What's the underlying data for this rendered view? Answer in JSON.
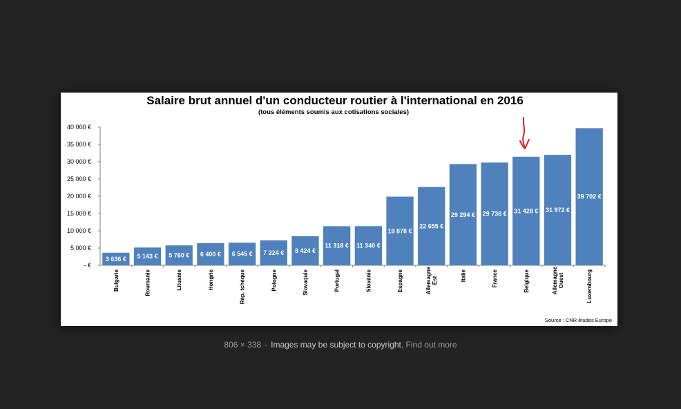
{
  "caption": {
    "dimensions": "806 × 338",
    "separator": "-",
    "copyright": "Images may be subject to copyright.",
    "learn_more": "Find out more"
  },
  "chart_data": {
    "type": "bar",
    "title": "Salaire brut annuel d'un conducteur routier à l'international en 2016",
    "subtitle": "(tous éléments soumis aux cotisations sociales)",
    "categories": [
      [
        "Bulgarie"
      ],
      [
        "Roumanie"
      ],
      [
        "Lituanie"
      ],
      [
        "Hongrie"
      ],
      [
        "Rép. tchèque"
      ],
      [
        "Pologne"
      ],
      [
        "Slovaquie"
      ],
      [
        "Portugal"
      ],
      [
        "Slovénie"
      ],
      [
        "Espagne"
      ],
      [
        "Allemagne",
        "Est"
      ],
      [
        "Italie"
      ],
      [
        "France"
      ],
      [
        "Belgique"
      ],
      [
        "Allemagne",
        "Ouest"
      ],
      [
        "Luxembourg"
      ]
    ],
    "values": [
      3636,
      5143,
      5760,
      6400,
      6545,
      7224,
      8424,
      11318,
      11340,
      19878,
      22655,
      29294,
      29736,
      31428,
      31972,
      39702
    ],
    "data_labels": [
      "3 636 €",
      "5 143 €",
      "5 760 €",
      "6 400 €",
      "6 545 €",
      "7 224 €",
      "8 424 €",
      "11 318 €",
      "11 340 €",
      "19 878 €",
      "22 655 €",
      "29 294 €",
      "29 736 €",
      "31 428 €",
      "31 972 €",
      "39 702 €"
    ],
    "ylim": [
      0,
      40000
    ],
    "yticks": [
      {
        "value": 40000,
        "label": "40 000 €"
      },
      {
        "value": 35000,
        "label": "35 000 €"
      },
      {
        "value": 30000,
        "label": "30 000 €"
      },
      {
        "value": 25000,
        "label": "25 000 €"
      },
      {
        "value": 20000,
        "label": "20 000 €"
      },
      {
        "value": 15000,
        "label": "15 000 €"
      },
      {
        "value": 10000,
        "label": "10 000 €"
      },
      {
        "value": 5000,
        "label": "5 000 €"
      },
      {
        "value": 0,
        "label": "-   €"
      }
    ],
    "bar_color": "#4f81bd",
    "grid": false,
    "legend": "none",
    "source": "Source : CNR études Europe",
    "annotation": {
      "type": "red-hand-drawn-arrow",
      "target_category_index": 13,
      "color": "#e02020"
    }
  }
}
